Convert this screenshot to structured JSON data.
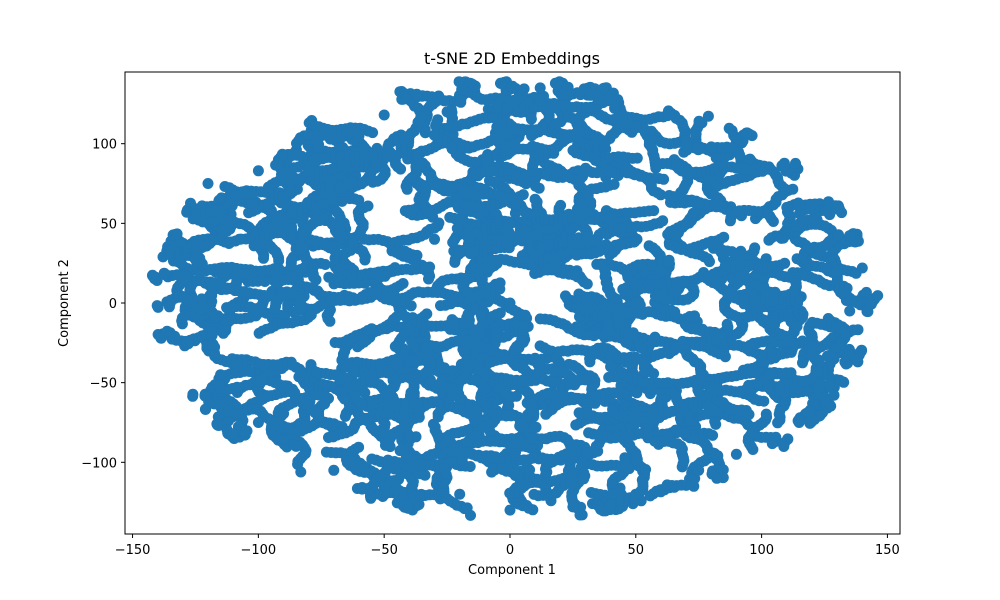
{
  "chart_data": {
    "type": "scatter",
    "title": "t-SNE 2D Embeddings",
    "xlabel": "Component 1",
    "ylabel": "Component 2",
    "xlim": [
      -153,
      155
    ],
    "ylim": [
      -145,
      145
    ],
    "xticks": [
      -150,
      -100,
      -50,
      0,
      50,
      100,
      150
    ],
    "yticks": [
      -100,
      -50,
      0,
      50,
      100
    ],
    "xtick_labels": [
      "−150",
      "−100",
      "−50",
      "0",
      "50",
      "100",
      "150"
    ],
    "ytick_labels": [
      "−100",
      "−50",
      "0",
      "50",
      "100"
    ],
    "grid": false,
    "legend": "none",
    "marker_color": "#1f77b4",
    "point_count": 7000,
    "data_extent": {
      "x": [
        -137,
        140
      ],
      "y": [
        -131,
        135
      ]
    },
    "series": [
      {
        "points_sample": [
          [
            -135,
            33
          ],
          [
            -125,
            55
          ],
          [
            -120,
            75
          ],
          [
            -100,
            83
          ],
          [
            -80,
            83
          ],
          [
            -60,
            105
          ],
          [
            -50,
            118
          ],
          [
            -25,
            120
          ],
          [
            -5,
            125
          ],
          [
            12,
            135
          ],
          [
            35,
            128
          ],
          [
            50,
            110
          ],
          [
            80,
            98
          ],
          [
            95,
            90
          ],
          [
            110,
            60
          ],
          [
            130,
            20
          ],
          [
            140,
            22
          ],
          [
            135,
            -5
          ],
          [
            120,
            -20
          ],
          [
            100,
            -35
          ],
          [
            95,
            -70
          ],
          [
            90,
            -95
          ],
          [
            75,
            -105
          ],
          [
            50,
            -120
          ],
          [
            25,
            -128
          ],
          [
            0,
            -130
          ],
          [
            -20,
            -120
          ],
          [
            -50,
            -115
          ],
          [
            -70,
            -105
          ],
          [
            -85,
            -90
          ],
          [
            -100,
            -75
          ],
          [
            -115,
            -45
          ],
          [
            -128,
            -25
          ],
          [
            -135,
            0
          ],
          [
            0,
            0
          ],
          [
            20,
            30
          ],
          [
            -30,
            40
          ],
          [
            40,
            -40
          ],
          [
            -20,
            -60
          ],
          [
            60,
            20
          ]
        ]
      }
    ]
  }
}
